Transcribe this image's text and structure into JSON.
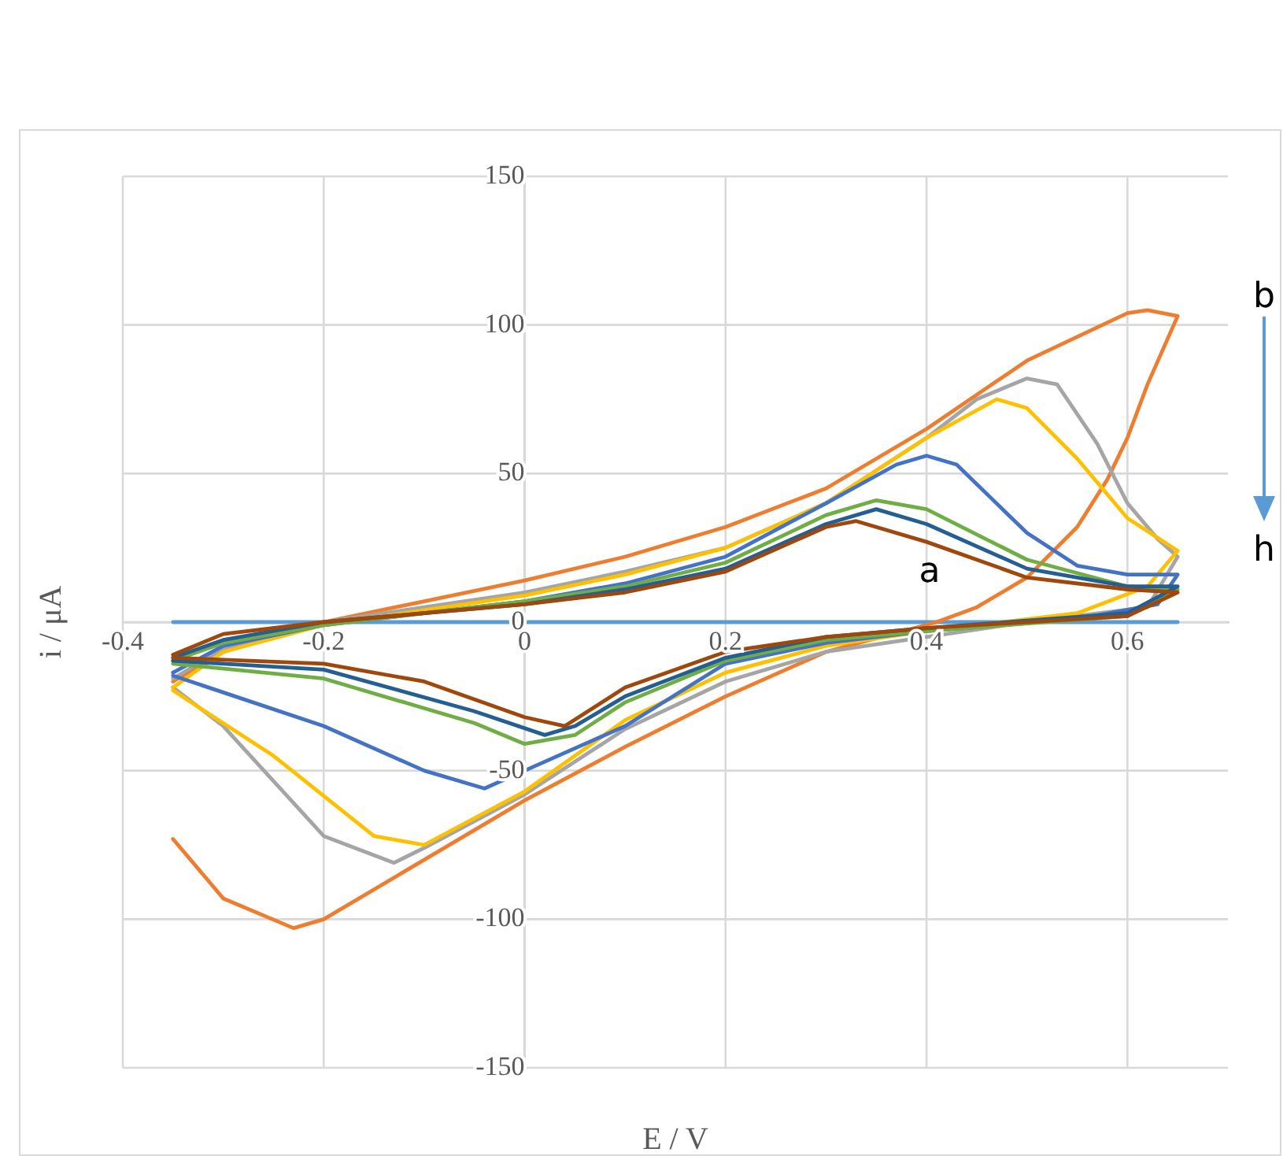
{
  "chart_data": {
    "type": "line",
    "xlabel": "E / V",
    "ylabel": "i / μA",
    "xlim": [
      -0.4,
      0.7
    ],
    "ylim": [
      -150,
      150
    ],
    "xticks": [
      -0.4,
      -0.2,
      0,
      0.2,
      0.4,
      0.6
    ],
    "yticks": [
      -150,
      -100,
      -50,
      0,
      50,
      100,
      150
    ],
    "grid": true,
    "legend": false,
    "marker": "none",
    "line_style": "solid",
    "annotations": [
      "b",
      "h",
      "a"
    ],
    "series": [
      {
        "color": "#5b9bd5",
        "x": [
          -0.35,
          0.65
        ],
        "values": [
          0,
          0
        ]
      },
      {
        "color": "#ed7d31",
        "x": [
          -0.35,
          -0.3,
          -0.2,
          -0.1,
          0,
          0.1,
          0.2,
          0.3,
          0.4,
          0.5,
          0.6,
          0.62,
          0.65,
          0.62,
          0.6,
          0.58,
          0.55,
          0.5,
          0.45,
          0.41,
          0.3,
          0.2,
          0.1,
          0,
          -0.1,
          -0.2,
          -0.23,
          -0.3,
          -0.35
        ],
        "values": [
          -20,
          -10,
          0,
          7,
          14,
          22,
          32,
          45,
          65,
          88,
          104,
          105,
          103,
          80,
          62,
          48,
          32,
          15,
          5,
          0,
          -10,
          -25,
          -42,
          -60,
          -80,
          -100,
          -103,
          -93,
          -73
        ]
      },
      {
        "color": "#a5a5a5",
        "x": [
          -0.35,
          -0.3,
          -0.2,
          -0.1,
          0,
          0.1,
          0.2,
          0.3,
          0.4,
          0.45,
          0.5,
          0.53,
          0.57,
          0.6,
          0.63,
          0.65,
          0.62,
          0.5,
          0.4,
          0.3,
          0.2,
          0.1,
          0,
          -0.1,
          -0.13,
          -0.2,
          -0.3,
          -0.35
        ],
        "values": [
          -19,
          -9,
          0,
          5,
          10,
          17,
          25,
          40,
          62,
          75,
          82,
          80,
          60,
          40,
          28,
          22,
          5,
          0,
          -5,
          -10,
          -20,
          -36,
          -58,
          -76,
          -81,
          -72,
          -35,
          -22
        ]
      },
      {
        "color": "#ffc000",
        "x": [
          -0.35,
          -0.3,
          -0.2,
          -0.1,
          0,
          0.1,
          0.2,
          0.3,
          0.4,
          0.47,
          0.5,
          0.55,
          0.6,
          0.65,
          0.62,
          0.55,
          0.45,
          0.4,
          0.3,
          0.2,
          0.1,
          0,
          -0.1,
          -0.15,
          -0.25,
          -0.35
        ],
        "values": [
          -22,
          -10,
          -1,
          4,
          9,
          16,
          25,
          40,
          62,
          75,
          72,
          55,
          35,
          24,
          12,
          3,
          -1,
          -3,
          -8,
          -17,
          -33,
          -57,
          -75,
          -72,
          -45,
          -23
        ]
      },
      {
        "color": "#4472c4",
        "x": [
          -0.35,
          -0.3,
          -0.2,
          -0.1,
          0,
          0.1,
          0.2,
          0.3,
          0.37,
          0.4,
          0.43,
          0.5,
          0.55,
          0.6,
          0.65,
          0.63,
          0.55,
          0.4,
          0.3,
          0.2,
          0.1,
          0,
          -0.04,
          -0.1,
          -0.2,
          -0.35
        ],
        "values": [
          -17,
          -8,
          -1,
          3,
          7,
          13,
          22,
          40,
          53,
          56,
          53,
          30,
          19,
          16,
          16,
          6,
          1,
          -3,
          -7,
          -14,
          -35,
          -50,
          -56,
          -50,
          -35,
          -18
        ]
      },
      {
        "color": "#70ad47",
        "x": [
          -0.35,
          -0.3,
          -0.2,
          -0.1,
          0,
          0.1,
          0.2,
          0.3,
          0.35,
          0.4,
          0.5,
          0.6,
          0.65,
          0.6,
          0.4,
          0.3,
          0.2,
          0.1,
          0.05,
          0,
          -0.05,
          -0.2,
          -0.35
        ],
        "values": [
          -13,
          -7,
          -1,
          3,
          7,
          12,
          20,
          36,
          41,
          38,
          21,
          12,
          11,
          2,
          -3,
          -6,
          -13,
          -27,
          -38,
          -41,
          -34,
          -19,
          -14
        ]
      },
      {
        "color": "#255e91",
        "x": [
          -0.35,
          -0.3,
          -0.2,
          -0.1,
          0,
          0.1,
          0.2,
          0.3,
          0.35,
          0.4,
          0.5,
          0.6,
          0.65,
          0.6,
          0.4,
          0.3,
          0.2,
          0.1,
          0.05,
          0.02,
          -0.05,
          -0.2,
          -0.35
        ],
        "values": [
          -12,
          -6,
          0,
          3,
          6,
          11,
          18,
          33,
          38,
          33,
          18,
          12,
          12,
          3,
          -2,
          -5,
          -12,
          -25,
          -35,
          -38,
          -30,
          -16,
          -13
        ]
      },
      {
        "color": "#9e480e",
        "x": [
          -0.35,
          -0.3,
          -0.2,
          -0.1,
          0,
          0.1,
          0.2,
          0.3,
          0.33,
          0.4,
          0.5,
          0.6,
          0.65,
          0.6,
          0.4,
          0.3,
          0.2,
          0.1,
          0.04,
          0,
          -0.1,
          -0.2,
          -0.35
        ],
        "values": [
          -11,
          -4,
          0,
          3,
          6,
          10,
          17,
          32,
          34,
          27,
          15,
          11,
          10,
          2,
          -2,
          -5,
          -10,
          -22,
          -35,
          -32,
          -20,
          -14,
          -12
        ]
      }
    ]
  }
}
